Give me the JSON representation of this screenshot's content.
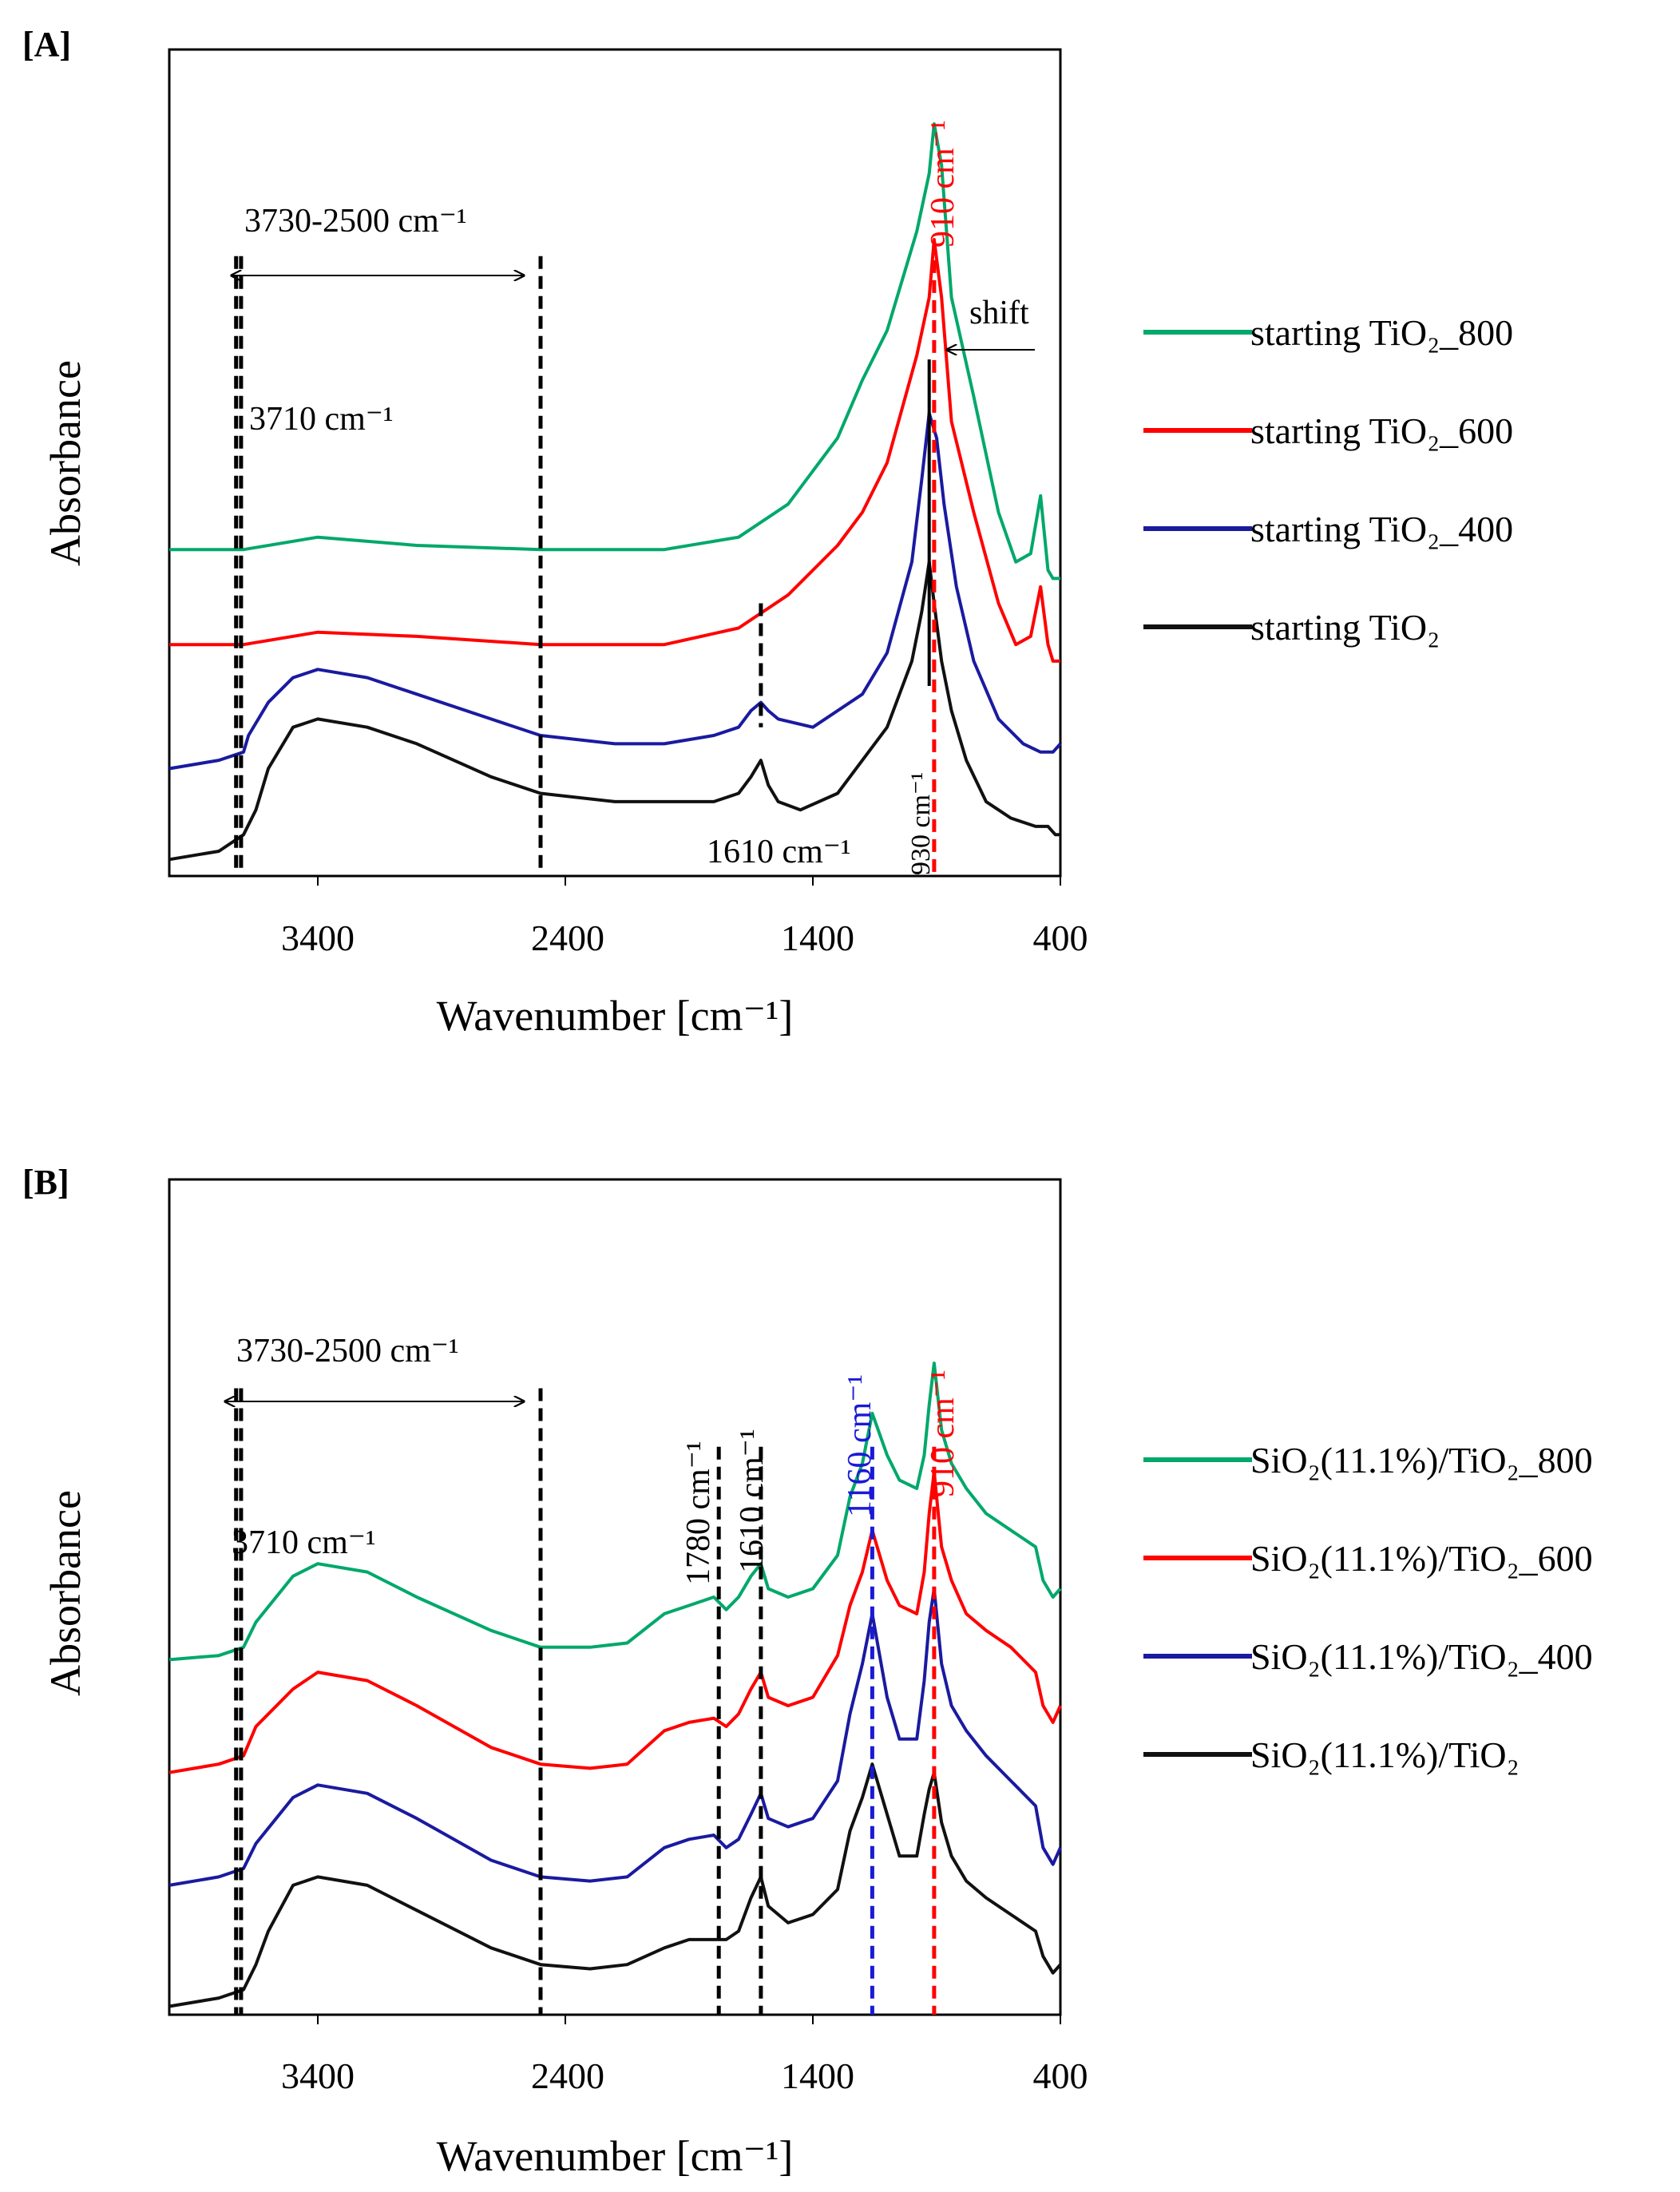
{
  "chart_data": [
    {
      "type": "line",
      "panel_label": "[A]",
      "xlabel": "Wavenumber [cm⁻¹]",
      "ylabel": "Absorbance",
      "xlim": [
        4000,
        400
      ],
      "ylim": [
        0,
        1
      ],
      "x_ticks": [
        3400,
        2400,
        1400,
        400
      ],
      "x_tick_labels": [
        "3400",
        "2400",
        "1400",
        "400"
      ],
      "grid": false,
      "legend_position": "right",
      "series": [
        {
          "name": "starting TiO₂_800",
          "color": "#00a86b",
          "x": [
            4000,
            3700,
            3400,
            3000,
            2500,
            2000,
            1700,
            1500,
            1300,
            1200,
            1100,
            980,
            930,
            910,
            880,
            840,
            750,
            650,
            580,
            520,
            480,
            450,
            430,
            400
          ],
          "y": [
            0.395,
            0.395,
            0.41,
            0.4,
            0.395,
            0.395,
            0.41,
            0.45,
            0.53,
            0.6,
            0.66,
            0.78,
            0.85,
            0.91,
            0.86,
            0.7,
            0.58,
            0.44,
            0.38,
            0.39,
            0.46,
            0.37,
            0.36,
            0.36
          ]
        },
        {
          "name": "starting TiO₂_600",
          "color": "#ff0000",
          "x": [
            4000,
            3700,
            3400,
            3000,
            2500,
            2000,
            1700,
            1500,
            1300,
            1200,
            1100,
            980,
            930,
            910,
            880,
            840,
            750,
            650,
            580,
            520,
            480,
            450,
            430,
            400
          ],
          "y": [
            0.28,
            0.28,
            0.295,
            0.29,
            0.28,
            0.28,
            0.3,
            0.34,
            0.4,
            0.44,
            0.5,
            0.63,
            0.7,
            0.77,
            0.7,
            0.55,
            0.44,
            0.33,
            0.28,
            0.29,
            0.35,
            0.28,
            0.26,
            0.26
          ]
        },
        {
          "name": "starting TiO₂_400",
          "color": "#1a1aa0",
          "x": [
            4000,
            3800,
            3700,
            3680,
            3600,
            3500,
            3400,
            3200,
            3000,
            2700,
            2500,
            2200,
            2000,
            1800,
            1700,
            1650,
            1610,
            1580,
            1540,
            1400,
            1200,
            1100,
            1000,
            960,
            930,
            900,
            870,
            820,
            750,
            650,
            550,
            480,
            430,
            400
          ],
          "y": [
            0.13,
            0.14,
            0.15,
            0.17,
            0.21,
            0.24,
            0.25,
            0.24,
            0.22,
            0.19,
            0.17,
            0.16,
            0.16,
            0.17,
            0.18,
            0.2,
            0.21,
            0.2,
            0.19,
            0.18,
            0.22,
            0.27,
            0.38,
            0.48,
            0.56,
            0.53,
            0.45,
            0.35,
            0.26,
            0.19,
            0.16,
            0.15,
            0.15,
            0.16
          ]
        },
        {
          "name": "starting TiO₂",
          "color": "#111111",
          "x": [
            4000,
            3800,
            3700,
            3650,
            3600,
            3500,
            3400,
            3200,
            3000,
            2700,
            2500,
            2200,
            2000,
            1800,
            1700,
            1650,
            1610,
            1580,
            1540,
            1450,
            1300,
            1200,
            1100,
            1000,
            960,
            930,
            910,
            880,
            840,
            780,
            700,
            600,
            500,
            450,
            420,
            400
          ],
          "y": [
            0.02,
            0.03,
            0.05,
            0.08,
            0.13,
            0.18,
            0.19,
            0.18,
            0.16,
            0.12,
            0.1,
            0.09,
            0.09,
            0.09,
            0.1,
            0.12,
            0.14,
            0.11,
            0.09,
            0.08,
            0.1,
            0.14,
            0.18,
            0.26,
            0.32,
            0.38,
            0.33,
            0.26,
            0.2,
            0.14,
            0.09,
            0.07,
            0.06,
            0.06,
            0.05,
            0.05
          ]
        }
      ],
      "reference_lines": [
        {
          "x": 3730,
          "color": "#000000",
          "style": "dashed"
        },
        {
          "x": 3710,
          "color": "#000000",
          "style": "dashed"
        },
        {
          "x": 2500,
          "color": "#000000",
          "style": "dashed"
        },
        {
          "x": 1610,
          "color": "#000000",
          "style": "dashed"
        },
        {
          "x": 910,
          "color": "#ff0000",
          "style": "dashed"
        },
        {
          "x": 930,
          "color": "#000000",
          "style": "solid"
        }
      ],
      "annotations": {
        "range_label": "3730-2500  cm⁻¹",
        "peak_3710": "3710  cm⁻¹",
        "peak_1610": "1610  cm⁻¹",
        "peak_910": "910  cm⁻¹",
        "peak_930": "930  cm⁻¹",
        "shift": "shift"
      }
    },
    {
      "type": "line",
      "panel_label": "[B]",
      "xlabel": "Wavenumber [cm⁻¹]",
      "ylabel": "Absorbance",
      "xlim": [
        4000,
        400
      ],
      "ylim": [
        0,
        1
      ],
      "x_ticks": [
        3400,
        2400,
        1400,
        400
      ],
      "x_tick_labels": [
        "3400",
        "2400",
        "1400",
        "400"
      ],
      "grid": false,
      "legend_position": "right",
      "series": [
        {
          "name": "SiO₂(11.1%)/TiO₂_800",
          "color": "#00a86b",
          "x": [
            4000,
            3800,
            3700,
            3650,
            3500,
            3400,
            3200,
            3000,
            2700,
            2500,
            2300,
            2150,
            2000,
            1900,
            1800,
            1750,
            1700,
            1650,
            1610,
            1580,
            1500,
            1400,
            1300,
            1250,
            1200,
            1160,
            1100,
            1050,
            980,
            950,
            930,
            910,
            880,
            840,
            780,
            700,
            600,
            500,
            470,
            430,
            400
          ],
          "y": [
            0.425,
            0.43,
            0.44,
            0.47,
            0.525,
            0.54,
            0.53,
            0.5,
            0.46,
            0.44,
            0.44,
            0.445,
            0.48,
            0.49,
            0.5,
            0.485,
            0.5,
            0.525,
            0.54,
            0.51,
            0.5,
            0.51,
            0.55,
            0.62,
            0.66,
            0.72,
            0.67,
            0.64,
            0.63,
            0.67,
            0.73,
            0.78,
            0.7,
            0.66,
            0.63,
            0.6,
            0.58,
            0.56,
            0.52,
            0.5,
            0.51
          ]
        },
        {
          "name": "SiO₂(11.1%)/TiO₂_600",
          "color": "#ff0000",
          "x": [
            4000,
            3800,
            3700,
            3650,
            3500,
            3400,
            3200,
            3000,
            2700,
            2500,
            2300,
            2150,
            2000,
            1900,
            1800,
            1750,
            1700,
            1650,
            1610,
            1580,
            1500,
            1400,
            1300,
            1250,
            1200,
            1160,
            1100,
            1050,
            980,
            950,
            930,
            910,
            880,
            840,
            780,
            700,
            600,
            500,
            470,
            430,
            400
          ],
          "y": [
            0.29,
            0.3,
            0.31,
            0.345,
            0.39,
            0.41,
            0.4,
            0.37,
            0.32,
            0.3,
            0.295,
            0.3,
            0.34,
            0.35,
            0.355,
            0.345,
            0.36,
            0.39,
            0.41,
            0.38,
            0.37,
            0.38,
            0.43,
            0.49,
            0.53,
            0.58,
            0.52,
            0.49,
            0.48,
            0.53,
            0.6,
            0.65,
            0.56,
            0.52,
            0.48,
            0.46,
            0.44,
            0.41,
            0.37,
            0.35,
            0.37
          ]
        },
        {
          "name": "SiO₂(11.1%)/TiO₂_400",
          "color": "#1a1aa0",
          "x": [
            4000,
            3800,
            3700,
            3650,
            3500,
            3400,
            3200,
            3000,
            2700,
            2500,
            2300,
            2150,
            2000,
            1900,
            1800,
            1750,
            1700,
            1650,
            1610,
            1580,
            1500,
            1400,
            1300,
            1250,
            1200,
            1160,
            1100,
            1050,
            980,
            950,
            930,
            910,
            880,
            840,
            780,
            700,
            600,
            500,
            470,
            430,
            400
          ],
          "y": [
            0.155,
            0.165,
            0.175,
            0.205,
            0.26,
            0.275,
            0.265,
            0.235,
            0.185,
            0.165,
            0.16,
            0.165,
            0.2,
            0.21,
            0.215,
            0.2,
            0.21,
            0.24,
            0.265,
            0.235,
            0.225,
            0.235,
            0.28,
            0.36,
            0.42,
            0.48,
            0.38,
            0.33,
            0.33,
            0.4,
            0.47,
            0.51,
            0.42,
            0.37,
            0.34,
            0.31,
            0.28,
            0.25,
            0.2,
            0.18,
            0.2
          ]
        },
        {
          "name": "SiO₂(11.1%)/TiO₂",
          "color": "#111111",
          "x": [
            4000,
            3800,
            3700,
            3650,
            3600,
            3500,
            3400,
            3200,
            3000,
            2700,
            2500,
            2300,
            2150,
            2000,
            1900,
            1800,
            1750,
            1700,
            1650,
            1610,
            1580,
            1500,
            1400,
            1300,
            1250,
            1200,
            1160,
            1100,
            1050,
            980,
            950,
            930,
            910,
            880,
            840,
            780,
            700,
            600,
            500,
            470,
            430,
            400
          ],
          "y": [
            0.01,
            0.02,
            0.03,
            0.06,
            0.1,
            0.155,
            0.165,
            0.155,
            0.125,
            0.08,
            0.06,
            0.055,
            0.06,
            0.08,
            0.09,
            0.09,
            0.09,
            0.1,
            0.14,
            0.165,
            0.13,
            0.11,
            0.12,
            0.15,
            0.22,
            0.26,
            0.3,
            0.24,
            0.19,
            0.19,
            0.24,
            0.27,
            0.29,
            0.23,
            0.19,
            0.16,
            0.14,
            0.12,
            0.1,
            0.07,
            0.05,
            0.06
          ]
        }
      ],
      "reference_lines": [
        {
          "x": 3730,
          "color": "#000000",
          "style": "dashed"
        },
        {
          "x": 3710,
          "color": "#000000",
          "style": "dashed"
        },
        {
          "x": 2500,
          "color": "#000000",
          "style": "dashed"
        },
        {
          "x": 1780,
          "color": "#000000",
          "style": "dashed"
        },
        {
          "x": 1610,
          "color": "#000000",
          "style": "dashed"
        },
        {
          "x": 1160,
          "color": "#1a1ad6",
          "style": "dashed"
        },
        {
          "x": 910,
          "color": "#ff0000",
          "style": "dashed"
        }
      ],
      "annotations": {
        "range_label": "3730-2500  cm⁻¹",
        "peak_3710": "3710  cm⁻¹",
        "peak_1780": "1780  cm⁻¹",
        "peak_1610": "1610  cm⁻¹",
        "peak_1160": "1160  cm⁻¹",
        "peak_910": "910  cm⁻¹"
      }
    }
  ]
}
